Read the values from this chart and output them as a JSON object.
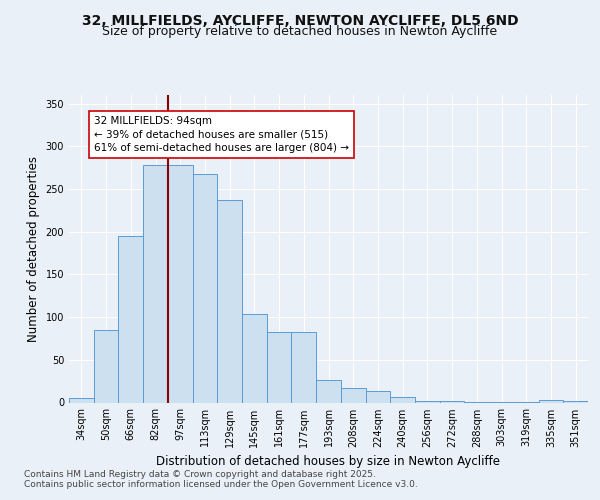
{
  "title_line1": "32, MILLFIELDS, AYCLIFFE, NEWTON AYCLIFFE, DL5 6ND",
  "title_line2": "Size of property relative to detached houses in Newton Aycliffe",
  "xlabel": "Distribution of detached houses by size in Newton Aycliffe",
  "ylabel": "Number of detached properties",
  "categories": [
    "34sqm",
    "50sqm",
    "66sqm",
    "82sqm",
    "97sqm",
    "113sqm",
    "129sqm",
    "145sqm",
    "161sqm",
    "177sqm",
    "193sqm",
    "208sqm",
    "224sqm",
    "240sqm",
    "256sqm",
    "272sqm",
    "288sqm",
    "303sqm",
    "319sqm",
    "335sqm",
    "351sqm"
  ],
  "values": [
    5,
    85,
    195,
    278,
    278,
    267,
    237,
    104,
    83,
    83,
    26,
    17,
    13,
    6,
    2,
    2,
    1,
    1,
    1,
    3,
    2
  ],
  "bar_color": "#cce0f0",
  "bar_edge_color": "#5b9bd5",
  "vline_x": 4.0,
  "vline_color": "#8b0000",
  "annotation_text": "32 MILLFIELDS: 94sqm\n← 39% of detached houses are smaller (515)\n61% of semi-detached houses are larger (804) →",
  "annotation_box_color": "#ffffff",
  "annotation_box_edge": "#cc0000",
  "ylim": [
    0,
    360
  ],
  "yticks": [
    0,
    50,
    100,
    150,
    200,
    250,
    300,
    350
  ],
  "bg_color": "#eaf0f7",
  "plot_bg_color": "#eaf0f7",
  "grid_color": "#ffffff",
  "footer_line1": "Contains HM Land Registry data © Crown copyright and database right 2025.",
  "footer_line2": "Contains public sector information licensed under the Open Government Licence v3.0.",
  "title_fontsize": 10,
  "subtitle_fontsize": 9,
  "axis_label_fontsize": 8.5,
  "tick_fontsize": 7,
  "footer_fontsize": 6.5,
  "annot_fontsize": 7.5
}
